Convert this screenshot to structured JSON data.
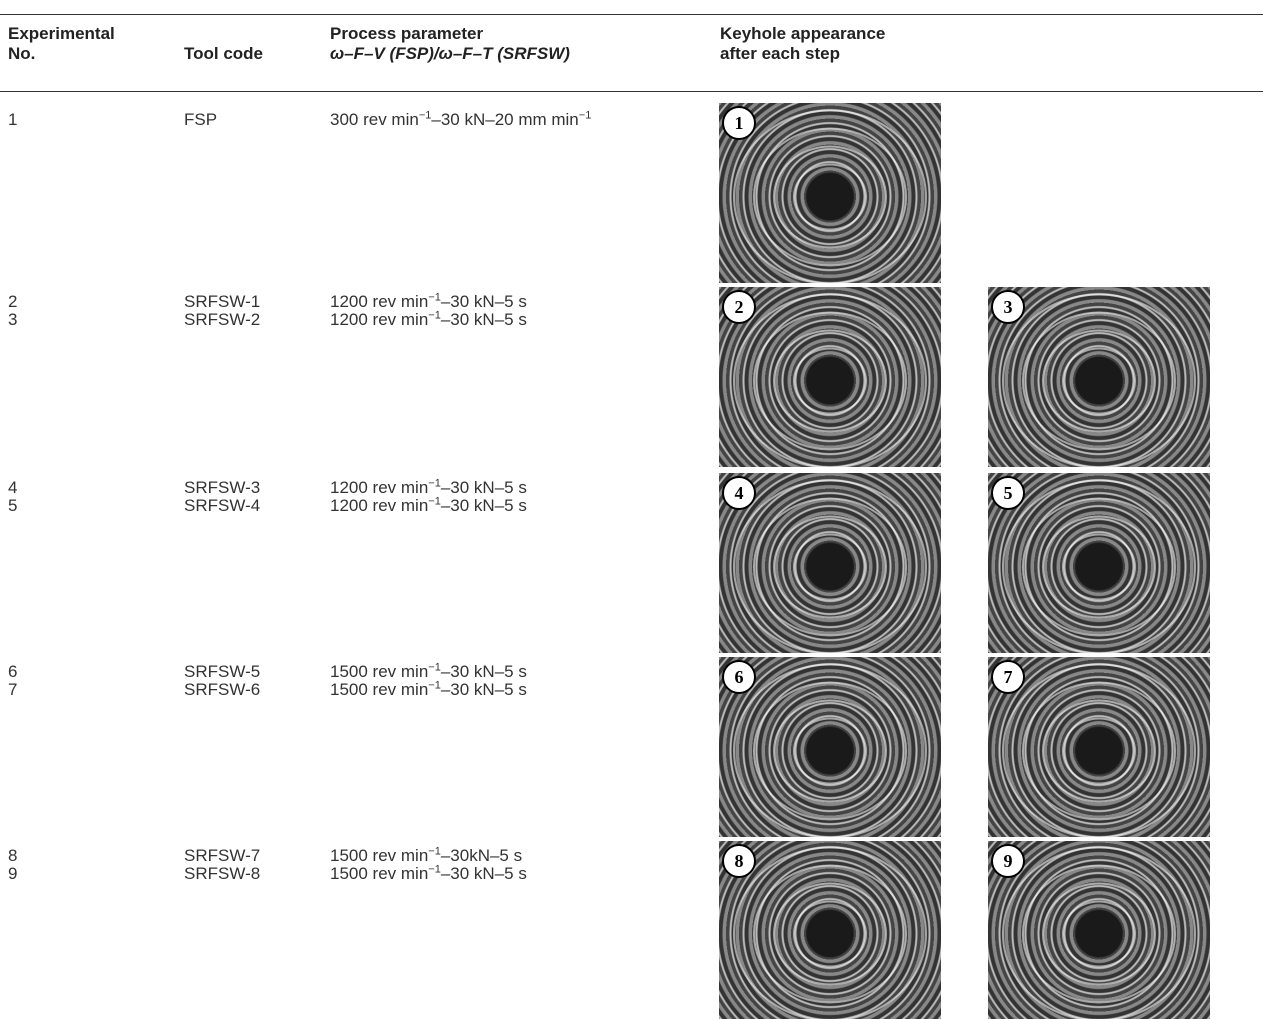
{
  "table": {
    "header": [
      [
        "Experimental",
        "No."
      ],
      [
        "Tool code"
      ],
      [
        "Process parameter",
        "ω–F–V (FSP)/ω–F–T (SRFSW)"
      ],
      [
        "Keyhole appearance",
        "after each step"
      ]
    ],
    "groups": [
      {
        "rows": [
          {
            "no": "1",
            "tool": "FSP",
            "parameter": [
              "300 rev min",
              "−1",
              "–30 kN–20 mm min",
              "−1"
            ]
          }
        ],
        "images": [
          "1"
        ]
      },
      {
        "rows": [
          {
            "no": "2",
            "tool": "SRFSW-1",
            "parameter": [
              "1200 rev min",
              "−1",
              "–30 kN–5 s"
            ]
          },
          {
            "no": "3",
            "tool": "SRFSW-2",
            "parameter": [
              "1200 rev min",
              "−1",
              "–30 kN–5 s"
            ]
          }
        ],
        "images": [
          "2",
          "3"
        ]
      },
      {
        "rows": [
          {
            "no": "4",
            "tool": "SRFSW-3",
            "parameter": [
              "1200 rev min",
              "−1",
              "–30 kN–5 s"
            ]
          },
          {
            "no": "5",
            "tool": "SRFSW-4",
            "parameter": [
              "1200 rev min",
              "−1",
              "–30 kN–5 s"
            ]
          }
        ],
        "images": [
          "4",
          "5"
        ]
      },
      {
        "rows": [
          {
            "no": "6",
            "tool": "SRFSW-5",
            "parameter": [
              "1500 rev min",
              "−1",
              "–30 kN–5 s"
            ]
          },
          {
            "no": "7",
            "tool": "SRFSW-6",
            "parameter": [
              "1500 rev min",
              "−1",
              "–30 kN–5 s"
            ]
          }
        ],
        "images": [
          "6",
          "7"
        ]
      },
      {
        "rows": [
          {
            "no": "8",
            "tool": "SRFSW-7",
            "parameter": [
              "1500 rev min",
              "−1",
              "–30kN–5 s"
            ]
          },
          {
            "no": "9",
            "tool": "SRFSW-8",
            "parameter": [
              "1500 rev min",
              "−1",
              "–30 kN–5 s"
            ]
          }
        ],
        "images": [
          "8",
          "9"
        ]
      }
    ]
  }
}
